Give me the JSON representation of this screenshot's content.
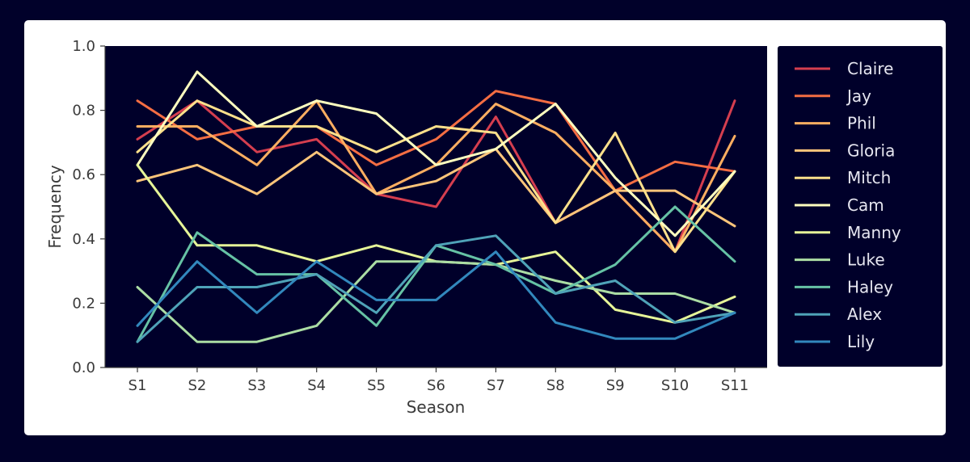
{
  "chart_data": {
    "type": "line",
    "title": "",
    "xlabel": "Season",
    "ylabel": "Frequency",
    "categories": [
      "S1",
      "S2",
      "S3",
      "S4",
      "S5",
      "S6",
      "S7",
      "S8",
      "S9",
      "S10",
      "S11"
    ],
    "ylim": [
      0.0,
      1.0
    ],
    "yticks": [
      "0.0",
      "0.2",
      "0.4",
      "0.6",
      "0.8",
      "1.0"
    ],
    "grid": false,
    "legend_position": "right-outside",
    "plot_background": "#00002a",
    "series": [
      {
        "name": "Claire",
        "color": "#d53e4f",
        "values": [
          0.71,
          0.83,
          0.67,
          0.71,
          0.54,
          0.5,
          0.78,
          0.45,
          0.55,
          0.36,
          0.83
        ]
      },
      {
        "name": "Jay",
        "color": "#f46d43",
        "values": [
          0.83,
          0.71,
          0.75,
          0.75,
          0.63,
          0.71,
          0.86,
          0.82,
          0.55,
          0.64,
          0.61
        ]
      },
      {
        "name": "Phil",
        "color": "#fdae61",
        "values": [
          0.75,
          0.75,
          0.63,
          0.83,
          0.54,
          0.63,
          0.82,
          0.73,
          0.55,
          0.36,
          0.72
        ]
      },
      {
        "name": "Gloria",
        "color": "#fdc57a",
        "values": [
          0.58,
          0.63,
          0.54,
          0.67,
          0.54,
          0.58,
          0.68,
          0.45,
          0.55,
          0.55,
          0.44
        ]
      },
      {
        "name": "Mitch",
        "color": "#fee08b",
        "values": [
          0.67,
          0.83,
          0.75,
          0.75,
          0.67,
          0.75,
          0.73,
          0.45,
          0.73,
          0.36,
          0.61
        ]
      },
      {
        "name": "Cam",
        "color": "#ffffbf",
        "values": [
          0.63,
          0.92,
          0.75,
          0.83,
          0.79,
          0.63,
          0.68,
          0.82,
          0.59,
          0.41,
          0.61
        ]
      },
      {
        "name": "Manny",
        "color": "#e6f598",
        "values": [
          0.63,
          0.38,
          0.38,
          0.33,
          0.38,
          0.33,
          0.32,
          0.36,
          0.18,
          0.14,
          0.22
        ]
      },
      {
        "name": "Luke",
        "color": "#abdda4",
        "values": [
          0.25,
          0.08,
          0.08,
          0.13,
          0.33,
          0.33,
          0.32,
          0.27,
          0.23,
          0.23,
          0.17
        ]
      },
      {
        "name": "Haley",
        "color": "#66c2a5",
        "values": [
          0.08,
          0.42,
          0.29,
          0.29,
          0.13,
          0.38,
          0.32,
          0.23,
          0.32,
          0.5,
          0.33
        ]
      },
      {
        "name": "Alex",
        "color": "#4fa3b8",
        "values": [
          0.08,
          0.25,
          0.25,
          0.29,
          0.17,
          0.38,
          0.41,
          0.23,
          0.27,
          0.14,
          0.17
        ]
      },
      {
        "name": "Lily",
        "color": "#3288bd",
        "values": [
          0.13,
          0.33,
          0.17,
          0.33,
          0.21,
          0.21,
          0.36,
          0.14,
          0.09,
          0.09,
          0.17
        ]
      }
    ]
  }
}
